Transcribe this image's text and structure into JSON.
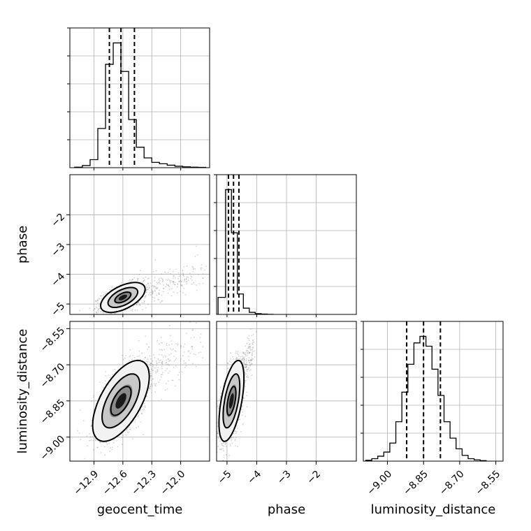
{
  "chart_data": {
    "type": "corner",
    "parameters": [
      {
        "name": "geocent_time",
        "range": [
          -13.15,
          -11.7
        ],
        "ticks": [
          -12.9,
          -12.6,
          -12.3,
          -12.0
        ],
        "tick_labels": [
          "−12.9",
          "−12.6",
          "−12.3",
          "−12.0"
        ]
      },
      {
        "name": "phase",
        "range": [
          -5.35,
          -0.65
        ],
        "ticks": [
          -5,
          -4,
          -3,
          -2
        ],
        "tick_labels": [
          "−5",
          "−4",
          "−3",
          "−2"
        ]
      },
      {
        "name": "luminosity_distance",
        "range": [
          -9.1,
          -8.52
        ],
        "ticks": [
          -9.0,
          -8.85,
          -8.7,
          -8.55
        ],
        "tick_labels": [
          "−9.00",
          "−8.85",
          "−8.70",
          "−8.55"
        ]
      }
    ],
    "histograms": [
      {
        "parameter": "geocent_time",
        "bin_edges": [
          -13.1,
          -13.02,
          -12.94,
          -12.86,
          -12.78,
          -12.7,
          -12.62,
          -12.54,
          -12.46,
          -12.38,
          -12.3,
          -12.22,
          -12.14,
          -12.06,
          -11.98,
          -11.9,
          -11.82,
          -11.74
        ],
        "counts": [
          3,
          12,
          45,
          220,
          580,
          700,
          540,
          270,
          115,
          55,
          30,
          22,
          14,
          8,
          5,
          3,
          2
        ],
        "quantiles": [
          -12.74,
          -12.62,
          -12.48
        ]
      },
      {
        "parameter": "phase",
        "bin_edges": [
          -5.3,
          -5.05,
          -4.85,
          -4.65,
          -4.45,
          -4.25,
          -4.05,
          -3.85,
          -3.65,
          -3.45
        ],
        "counts": [
          150,
          1100,
          720,
          180,
          55,
          18,
          7,
          3,
          1
        ],
        "quantiles": [
          -4.95,
          -4.78,
          -4.6
        ]
      },
      {
        "parameter": "luminosity_distance",
        "bin_edges": [
          -9.09,
          -9.065,
          -9.04,
          -9.015,
          -8.99,
          -8.965,
          -8.94,
          -8.915,
          -8.89,
          -8.865,
          -8.84,
          -8.815,
          -8.79,
          -8.765,
          -8.74,
          -8.715,
          -8.69,
          -8.665,
          -8.64,
          -8.615,
          -8.59
        ],
        "counts": [
          5,
          15,
          30,
          55,
          110,
          240,
          420,
          590,
          720,
          760,
          700,
          560,
          400,
          240,
          140,
          75,
          35,
          15,
          8,
          3
        ],
        "quantiles": [
          -8.92,
          -8.85,
          -8.78
        ]
      }
    ],
    "scatter_panels": [
      {
        "x": "geocent_time",
        "y": "phase",
        "center": [
          -12.6,
          -4.78
        ],
        "sigma": [
          0.11,
          0.24
        ],
        "correlation": 0.55,
        "tail": {
          "from": [
            -12.5,
            -4.7
          ],
          "to": [
            -11.75,
            -3.9
          ],
          "spread": 0.25
        }
      },
      {
        "x": "geocent_time",
        "y": "luminosity_distance",
        "center": [
          -12.62,
          -8.85
        ],
        "sigma": [
          0.14,
          0.08
        ],
        "correlation": 0.6,
        "tail": {
          "from": [
            -12.5,
            -8.78
          ],
          "to": [
            -11.8,
            -8.6
          ],
          "spread": 0.05
        }
      },
      {
        "x": "phase",
        "y": "luminosity_distance",
        "center": [
          -4.85,
          -8.85
        ],
        "sigma": [
          0.2,
          0.08
        ],
        "correlation": 0.55,
        "tail": {
          "from": [
            -4.75,
            -8.8
          ],
          "to": [
            -4.1,
            -8.62
          ],
          "spread": 0.04
        }
      }
    ],
    "grid": true,
    "colors": {
      "points": "#808080",
      "lines": "#000000",
      "grid": "#b0b0b0"
    }
  }
}
